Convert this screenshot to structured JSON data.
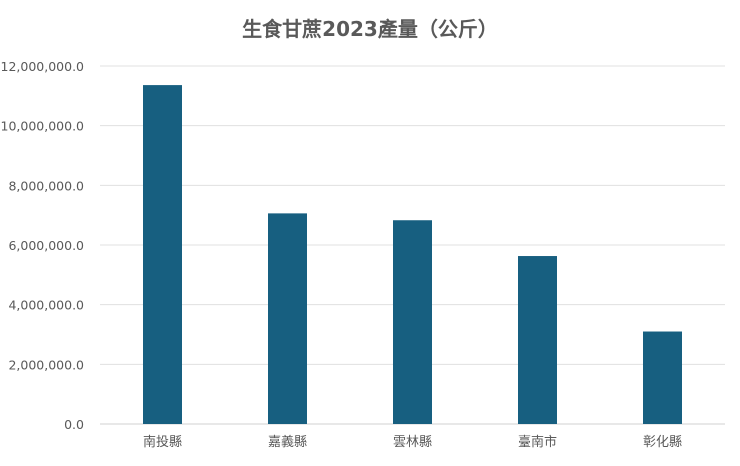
{
  "chart_data": {
    "type": "bar",
    "title": "生食甘蔗2023產量（公斤）",
    "xlabel": "",
    "ylabel": "",
    "categories": [
      "南投縣",
      "嘉義縣",
      "雲林縣",
      "臺南市",
      "彰化縣"
    ],
    "values": [
      11360000,
      7060000,
      6830000,
      5630000,
      3100000
    ],
    "ylim": [
      0,
      12000000
    ],
    "yticks": [
      0,
      2000000,
      4000000,
      6000000,
      8000000,
      10000000,
      12000000
    ],
    "ytick_labels": [
      "0.0",
      "2,000,000.0",
      "4,000,000.0",
      "6,000,000.0",
      "8,000,000.0",
      "10,000,000.0",
      "12,000,000.0"
    ],
    "grid": true,
    "legend": "none",
    "bar_color": "#175f80"
  }
}
